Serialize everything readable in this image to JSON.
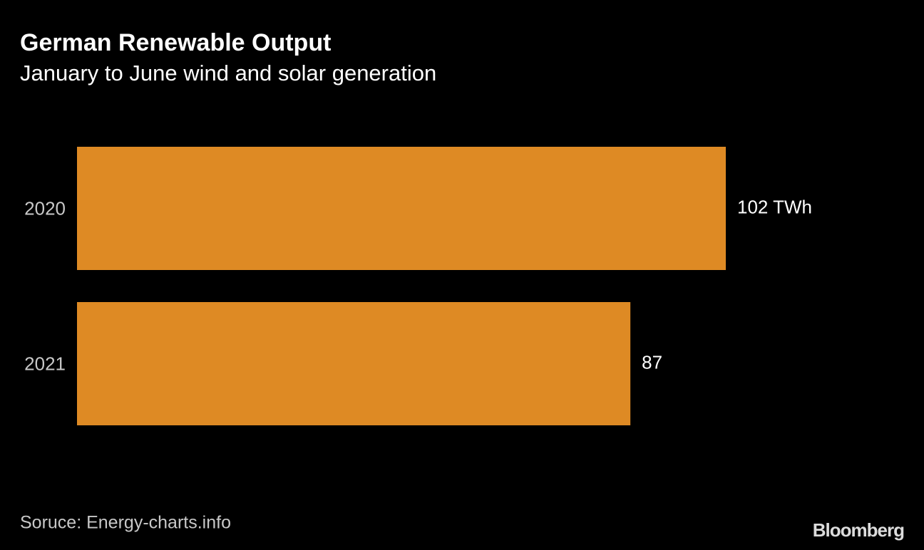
{
  "chart_data": {
    "type": "bar",
    "orientation": "horizontal",
    "title": "German Renewable Output",
    "subtitle": "January to June wind and solar generation",
    "categories": [
      "2020",
      "2021"
    ],
    "values": [
      102,
      87
    ],
    "value_labels": [
      "102 TWh",
      "87"
    ],
    "color": "#de8a24",
    "source": "Soruce: Energy-charts.info",
    "credit": "Bloomberg"
  }
}
